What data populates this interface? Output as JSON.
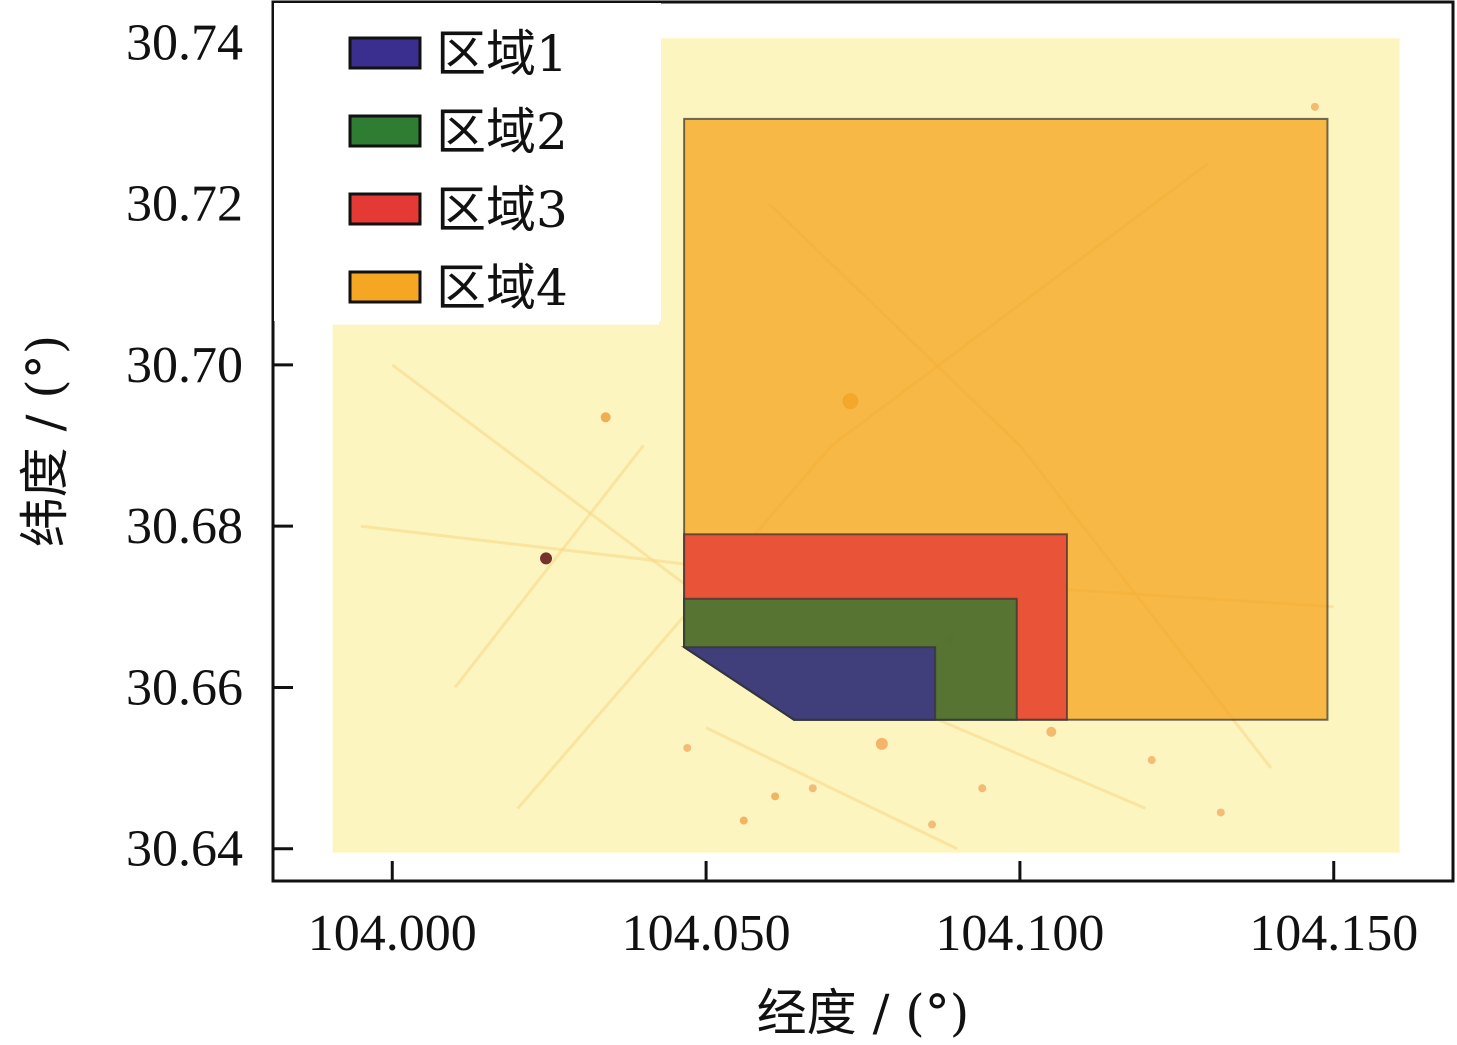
{
  "chart_data": {
    "type": "heatmap",
    "title": "",
    "xlabel": "经度 / (°)",
    "ylabel": "纬度 / (°)",
    "xlim": [
      103.981,
      104.169
    ],
    "ylim": [
      30.636,
      30.745
    ],
    "xticks": [
      "104.000",
      "104.050",
      "104.100",
      "104.150"
    ],
    "yticks": [
      "30.64",
      "30.66",
      "30.68",
      "30.70",
      "30.72",
      "30.74"
    ],
    "grid": false,
    "legend_position": "top-left",
    "background_color": "#fdf5c0",
    "series": [
      {
        "name": "区域1",
        "color": "#3a2f8f",
        "polygon": [
          [
            104.0465,
            30.665
          ],
          [
            104.0865,
            30.665
          ],
          [
            104.0865,
            30.656
          ],
          [
            104.064,
            30.656
          ]
        ]
      },
      {
        "name": "区域2",
        "color": "#2e7d32",
        "polygon": [
          [
            104.0465,
            30.671
          ],
          [
            104.0995,
            30.671
          ],
          [
            104.0995,
            30.656
          ],
          [
            104.064,
            30.656
          ],
          [
            104.0465,
            30.665
          ]
        ]
      },
      {
        "name": "区域3",
        "color": "#e53935",
        "polygon": [
          [
            104.0465,
            30.679
          ],
          [
            104.1075,
            30.679
          ],
          [
            104.1075,
            30.656
          ],
          [
            104.064,
            30.656
          ],
          [
            104.0465,
            30.665
          ]
        ]
      },
      {
        "name": "区域4",
        "color": "#f5a623",
        "polygon": [
          [
            104.0465,
            30.7305
          ],
          [
            104.149,
            30.7305
          ],
          [
            104.149,
            30.656
          ],
          [
            104.064,
            30.656
          ],
          [
            104.0465,
            30.665
          ]
        ]
      }
    ]
  }
}
